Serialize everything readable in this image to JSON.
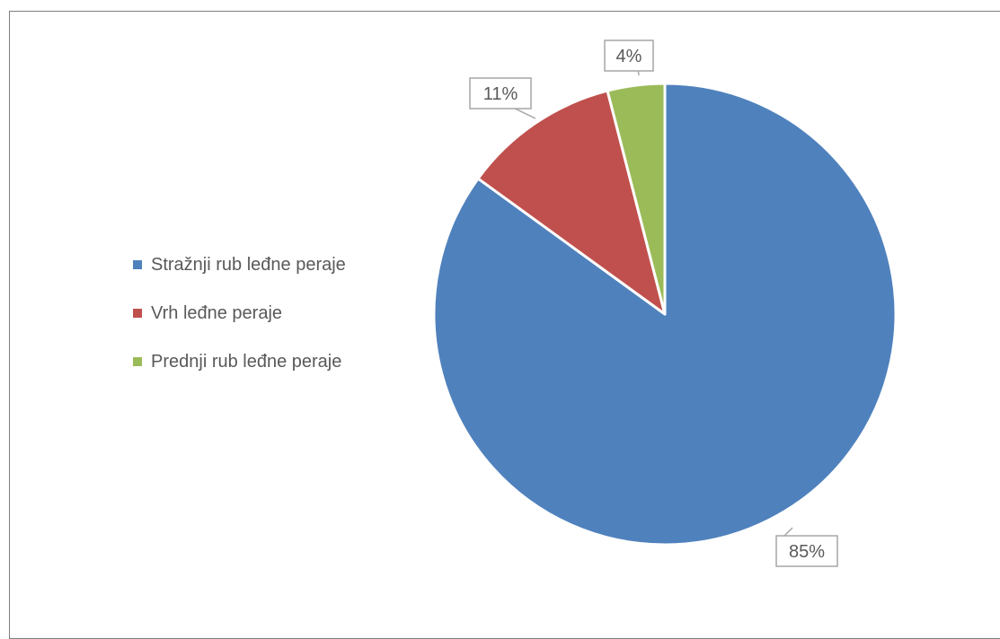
{
  "chart_data": {
    "type": "pie",
    "title": "",
    "legend_position": "left",
    "categories": [
      "Stražnji rub leđne peraje",
      "Vrh leđne peraje",
      "Prednji rub leđne peraje"
    ],
    "values": [
      85,
      11,
      4
    ],
    "labels": [
      "85%",
      "11%",
      "4%"
    ],
    "colors": [
      "#4f81bd",
      "#c0504d",
      "#9bbb59"
    ]
  }
}
